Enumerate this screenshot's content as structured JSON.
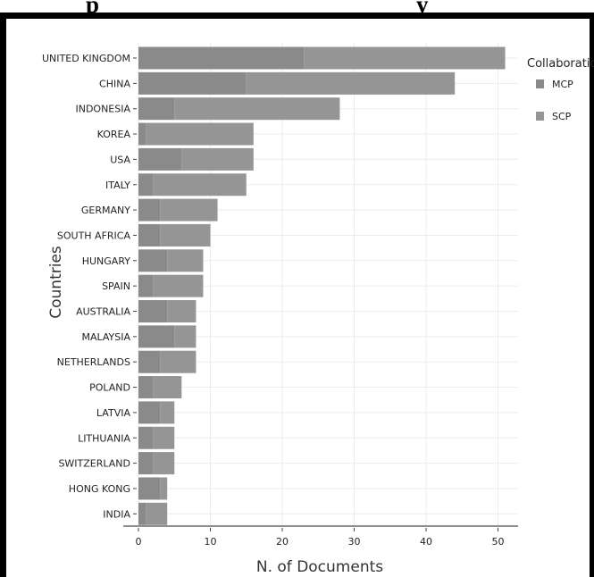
{
  "header": {
    "title_fragment_left": "p",
    "title_fragment_right": "y"
  },
  "chart_data": {
    "type": "bar",
    "orientation": "horizontal",
    "stacked": true,
    "categories": [
      "UNITED KINGDOM",
      "CHINA",
      "INDONESIA",
      "KOREA",
      "USA",
      "ITALY",
      "GERMANY",
      "SOUTH AFRICA",
      "HUNGARY",
      "SPAIN",
      "AUSTRALIA",
      "MALAYSIA",
      "NETHERLANDS",
      "POLAND",
      "LATVIA",
      "LITHUANIA",
      "SWITZERLAND",
      "HONG KONG",
      "INDIA"
    ],
    "series": [
      {
        "name": "MCP",
        "values": [
          23,
          15,
          5,
          1,
          6,
          2,
          3,
          3,
          4,
          2,
          4,
          5,
          3,
          2,
          3,
          2,
          2,
          3,
          1
        ]
      },
      {
        "name": "SCP",
        "values": [
          28,
          29,
          23,
          15,
          10,
          13,
          8,
          7,
          5,
          7,
          4,
          3,
          5,
          4,
          2,
          3,
          3,
          1,
          3
        ]
      }
    ],
    "xlabel": "N. of Documents",
    "ylabel": "Countries",
    "xlim": [
      0,
      53
    ],
    "xticks": [
      0,
      10,
      20,
      30,
      40,
      50
    ],
    "grid": true,
    "legend": {
      "title": "Collaboration",
      "position": "right"
    },
    "colors": {
      "MCP": "#8a8a8a",
      "SCP": "#959595",
      "grid": "#ececec",
      "axis": "#6b6b6b"
    }
  }
}
